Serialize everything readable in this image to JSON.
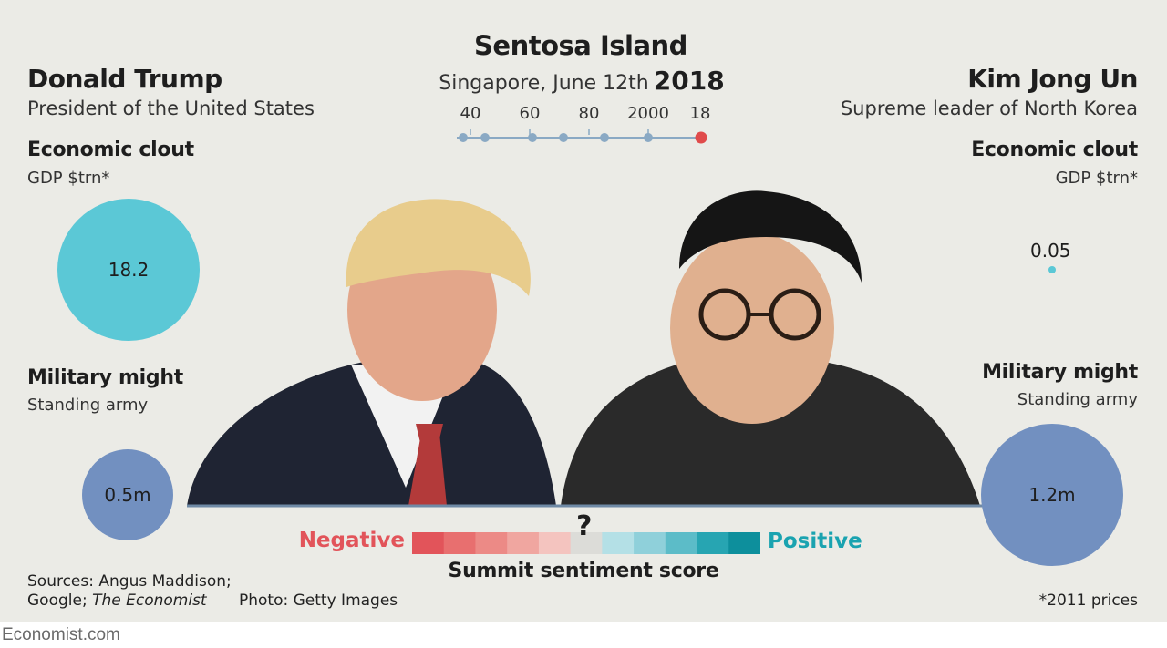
{
  "chart_data": {
    "type": "bubble-comparison",
    "title": "Sentosa Island",
    "subtitle": {
      "place_date": "Singapore, June 12th",
      "year": "2018"
    },
    "timeline_ticks": [
      "40",
      "60",
      "80",
      "2000",
      "18"
    ],
    "left": {
      "name": "Donald Trump",
      "role": "President of the United States",
      "economic": {
        "label": "Economic clout",
        "unit": "GDP $trn*",
        "value": 18.2,
        "value_label": "18.2"
      },
      "military": {
        "label": "Military might",
        "unit": "Standing army",
        "value": 0.5,
        "value_label": "0.5m"
      }
    },
    "right": {
      "name": "Kim Jong Un",
      "role": "Supreme leader of North Korea",
      "economic": {
        "label": "Economic clout",
        "unit": "GDP $trn*",
        "value": 0.05,
        "value_label": "0.05"
      },
      "military": {
        "label": "Military might",
        "unit": "Standing army",
        "value": 1.2,
        "value_label": "1.2m"
      }
    },
    "sentiment": {
      "negative_label": "Negative",
      "positive_label": "Positive",
      "marker": "?",
      "title": "Summit sentiment score",
      "negative_colors": [
        "#e2545a",
        "#e86f6f",
        "#ec8a86",
        "#f0a6a0",
        "#f4c4bf"
      ],
      "neutral_color": "#dcdcd8",
      "positive_colors": [
        "#b4e0e6",
        "#8fd0da",
        "#5cbcc8",
        "#27a5b2",
        "#0d8f9c"
      ]
    },
    "colors": {
      "economic": "#5bc8d6",
      "military": "#7290c0",
      "negative": "#e2545a",
      "positive": "#1aa3b0",
      "timeline_dot": "#8aa9c4",
      "timeline_current": "#e04b4b"
    }
  },
  "sources": {
    "prefix": "Sources: Angus Maddison;",
    "line2_prefix": "Google; ",
    "line2_italic": "The Economist"
  },
  "photo_credit": "Photo: Getty Images",
  "price_note": "*2011 prices",
  "footer": "Economist.com"
}
